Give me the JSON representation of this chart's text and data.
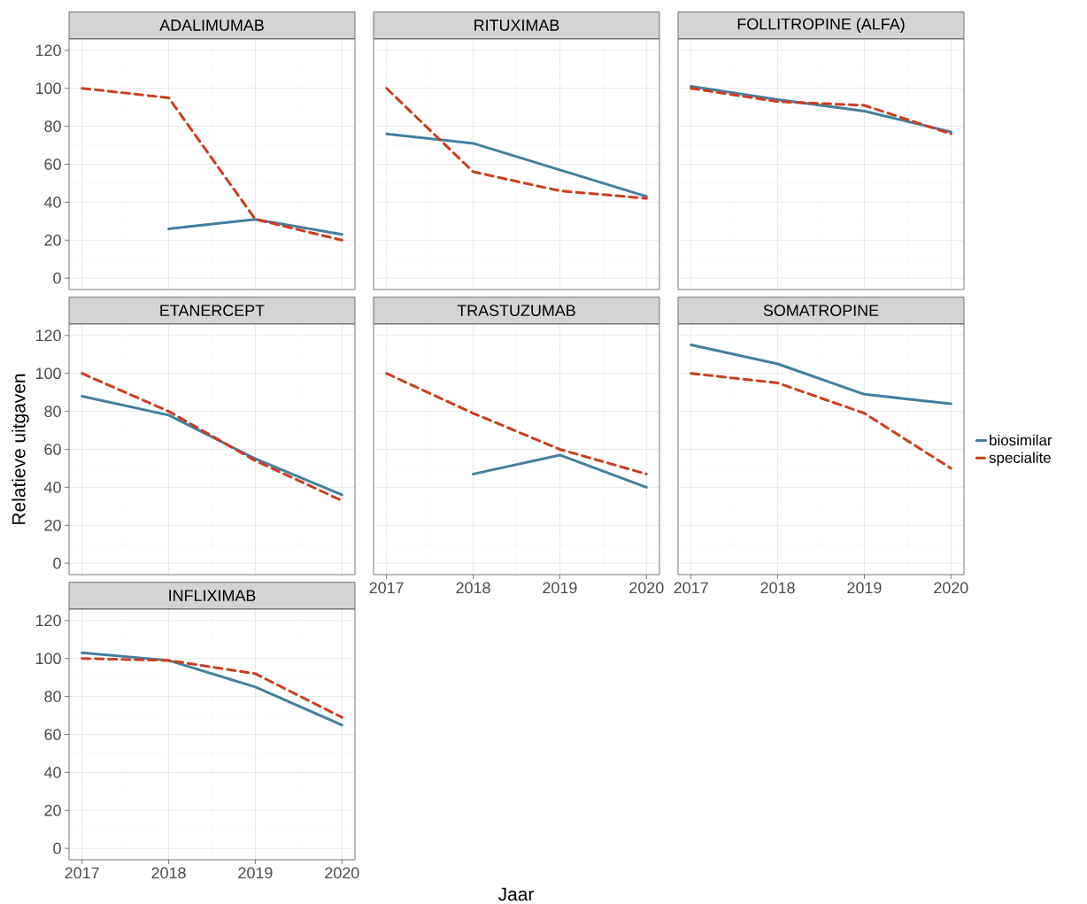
{
  "chart_data": [
    {
      "type": "line",
      "title": "ADALIMUMAB",
      "x": [
        2017,
        2018,
        2019,
        2020
      ],
      "xlim": [
        2016.85,
        2020.15
      ],
      "xticks": [
        2017,
        2018,
        2019,
        2020
      ],
      "ylim": [
        -6,
        126
      ],
      "yticks": [
        0,
        20,
        40,
        60,
        80,
        100,
        120
      ],
      "grid": true,
      "tick_labels": "y",
      "series": [
        {
          "color": "#447f9f",
          "line_style": "solid",
          "values": [
            null,
            26,
            31,
            23
          ]
        },
        {
          "color": "#cc3d1f",
          "line_style": "dashed",
          "values": [
            100,
            95,
            31,
            20
          ]
        }
      ]
    },
    {
      "type": "line",
      "title": "RITUXIMAB",
      "x": [
        2017,
        2018,
        2019,
        2020
      ],
      "xlim": [
        2016.85,
        2020.15
      ],
      "xticks": [
        2017,
        2018,
        2019,
        2020
      ],
      "ylim": [
        -6,
        126
      ],
      "yticks": [
        0,
        20,
        40,
        60,
        80,
        100,
        120
      ],
      "grid": true,
      "tick_labels": false,
      "series": [
        {
          "color": "#447f9f",
          "line_style": "solid",
          "values": [
            76,
            71,
            57,
            43
          ]
        },
        {
          "color": "#cc3d1f",
          "line_style": "dashed",
          "values": [
            100,
            56,
            46,
            42
          ]
        }
      ]
    },
    {
      "type": "line",
      "title": "FOLLITROPINE (ALFA)",
      "x": [
        2017,
        2018,
        2019,
        2020
      ],
      "xlim": [
        2016.85,
        2020.15
      ],
      "xticks": [
        2017,
        2018,
        2019,
        2020
      ],
      "ylim": [
        -6,
        126
      ],
      "yticks": [
        0,
        20,
        40,
        60,
        80,
        100,
        120
      ],
      "grid": true,
      "tick_labels": false,
      "series": [
        {
          "color": "#447f9f",
          "line_style": "solid",
          "values": [
            101,
            94,
            88,
            77
          ]
        },
        {
          "color": "#cc3d1f",
          "line_style": "dashed",
          "values": [
            100,
            93,
            91,
            76
          ]
        }
      ]
    },
    {
      "type": "line",
      "title": "ETANERCEPT",
      "ylabel": "Relatieve uitgaven",
      "x": [
        2017,
        2018,
        2019,
        2020
      ],
      "xlim": [
        2016.85,
        2020.15
      ],
      "xticks": [
        2017,
        2018,
        2019,
        2020
      ],
      "ylim": [
        -6,
        126
      ],
      "yticks": [
        0,
        20,
        40,
        60,
        80,
        100,
        120
      ],
      "grid": true,
      "tick_labels": "y",
      "series": [
        {
          "color": "#447f9f",
          "line_style": "solid",
          "values": [
            88,
            78,
            55,
            36
          ]
        },
        {
          "color": "#cc3d1f",
          "line_style": "dashed",
          "values": [
            100,
            80,
            54,
            33
          ]
        }
      ]
    },
    {
      "type": "line",
      "title": "TRASTUZUMAB",
      "xlabel": "Jaar",
      "x": [
        2017,
        2018,
        2019,
        2020
      ],
      "xlim": [
        2016.85,
        2020.15
      ],
      "xticks": [
        2017,
        2018,
        2019,
        2020
      ],
      "ylim": [
        -6,
        126
      ],
      "yticks": [
        0,
        20,
        40,
        60,
        80,
        100,
        120
      ],
      "grid": true,
      "tick_labels": "x",
      "series": [
        {
          "color": "#447f9f",
          "line_style": "solid",
          "values": [
            null,
            47,
            57,
            40
          ]
        },
        {
          "color": "#cc3d1f",
          "line_style": "dashed",
          "values": [
            100,
            79,
            60,
            47
          ]
        }
      ]
    },
    {
      "type": "line",
      "title": "SOMATROPINE",
      "x": [
        2017,
        2018,
        2019,
        2020
      ],
      "xlim": [
        2016.85,
        2020.15
      ],
      "xticks": [
        2017,
        2018,
        2019,
        2020
      ],
      "ylim": [
        -6,
        126
      ],
      "yticks": [
        0,
        20,
        40,
        60,
        80,
        100,
        120
      ],
      "grid": true,
      "tick_labels": "x",
      "legend": "right",
      "series": [
        {
          "name": "biosimilar",
          "color": "#447f9f",
          "line_style": "solid",
          "values": [
            115,
            105,
            89,
            84
          ]
        },
        {
          "name": "specialite",
          "color": "#cc3d1f",
          "line_style": "dashed",
          "values": [
            100,
            95,
            79,
            50
          ]
        }
      ]
    },
    {
      "type": "line",
      "title": "INFLIXIMAB",
      "x": [
        2017,
        2018,
        2019,
        2020
      ],
      "xlim": [
        2016.85,
        2020.15
      ],
      "xticks": [
        2017,
        2018,
        2019,
        2020
      ],
      "ylim": [
        -6,
        126
      ],
      "yticks": [
        0,
        20,
        40,
        60,
        80,
        100,
        120
      ],
      "grid": true,
      "series": [
        {
          "color": "#447f9f",
          "line_style": "solid",
          "values": [
            103,
            99,
            85,
            65
          ]
        },
        {
          "color": "#cc3d1f",
          "line_style": "dashed",
          "values": [
            100,
            99,
            92,
            69
          ]
        }
      ]
    }
  ]
}
